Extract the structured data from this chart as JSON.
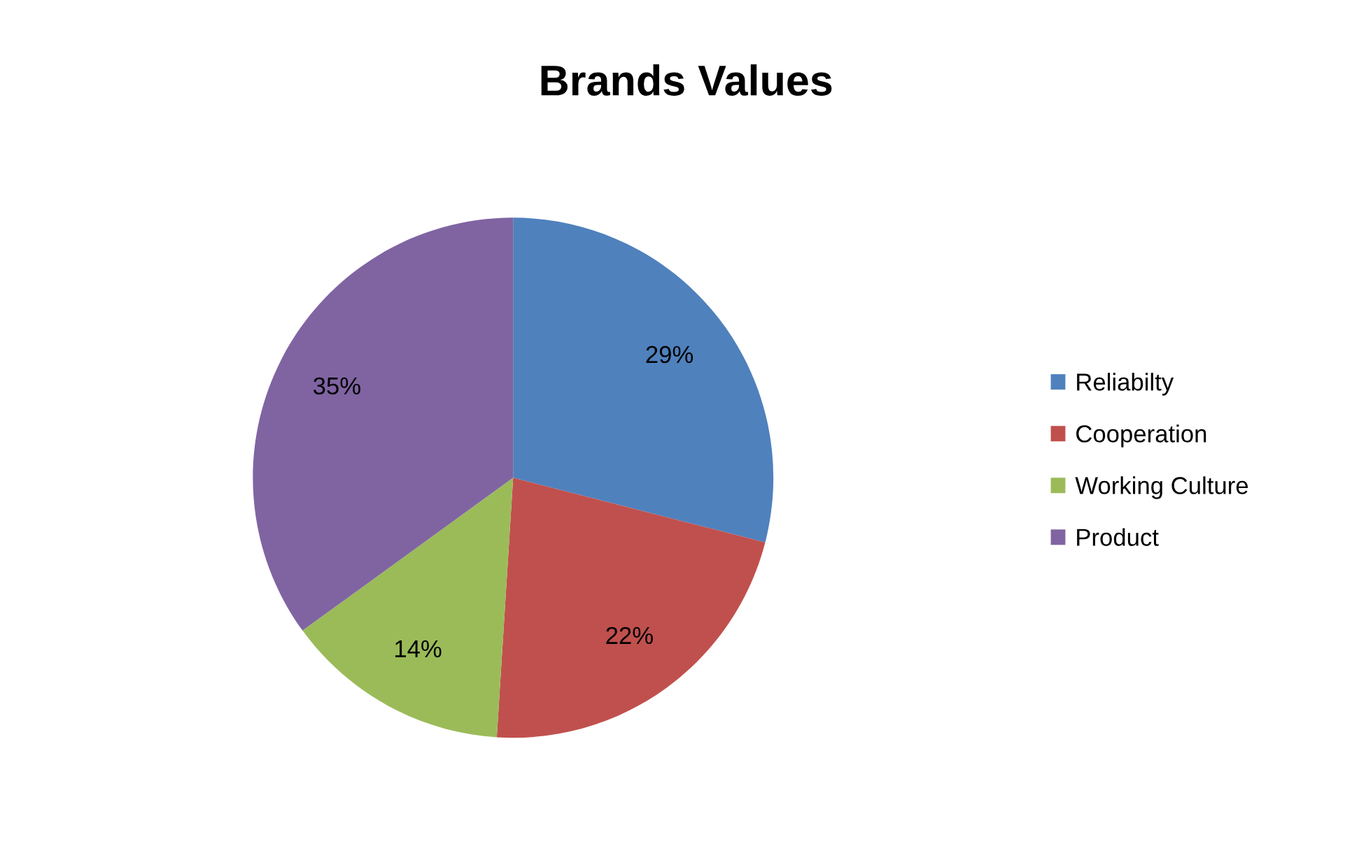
{
  "chart_data": {
    "type": "pie",
    "title": "Brands Values",
    "categories": [
      "Reliabilty",
      "Cooperation",
      "Working Culture",
      "Product"
    ],
    "values": [
      29,
      22,
      14,
      35
    ],
    "colors": [
      "#4f81bd",
      "#c0504d",
      "#9bbb59",
      "#8064a2"
    ],
    "value_labels": [
      "29%",
      "22%",
      "14%",
      "35%"
    ],
    "legend": "right"
  }
}
